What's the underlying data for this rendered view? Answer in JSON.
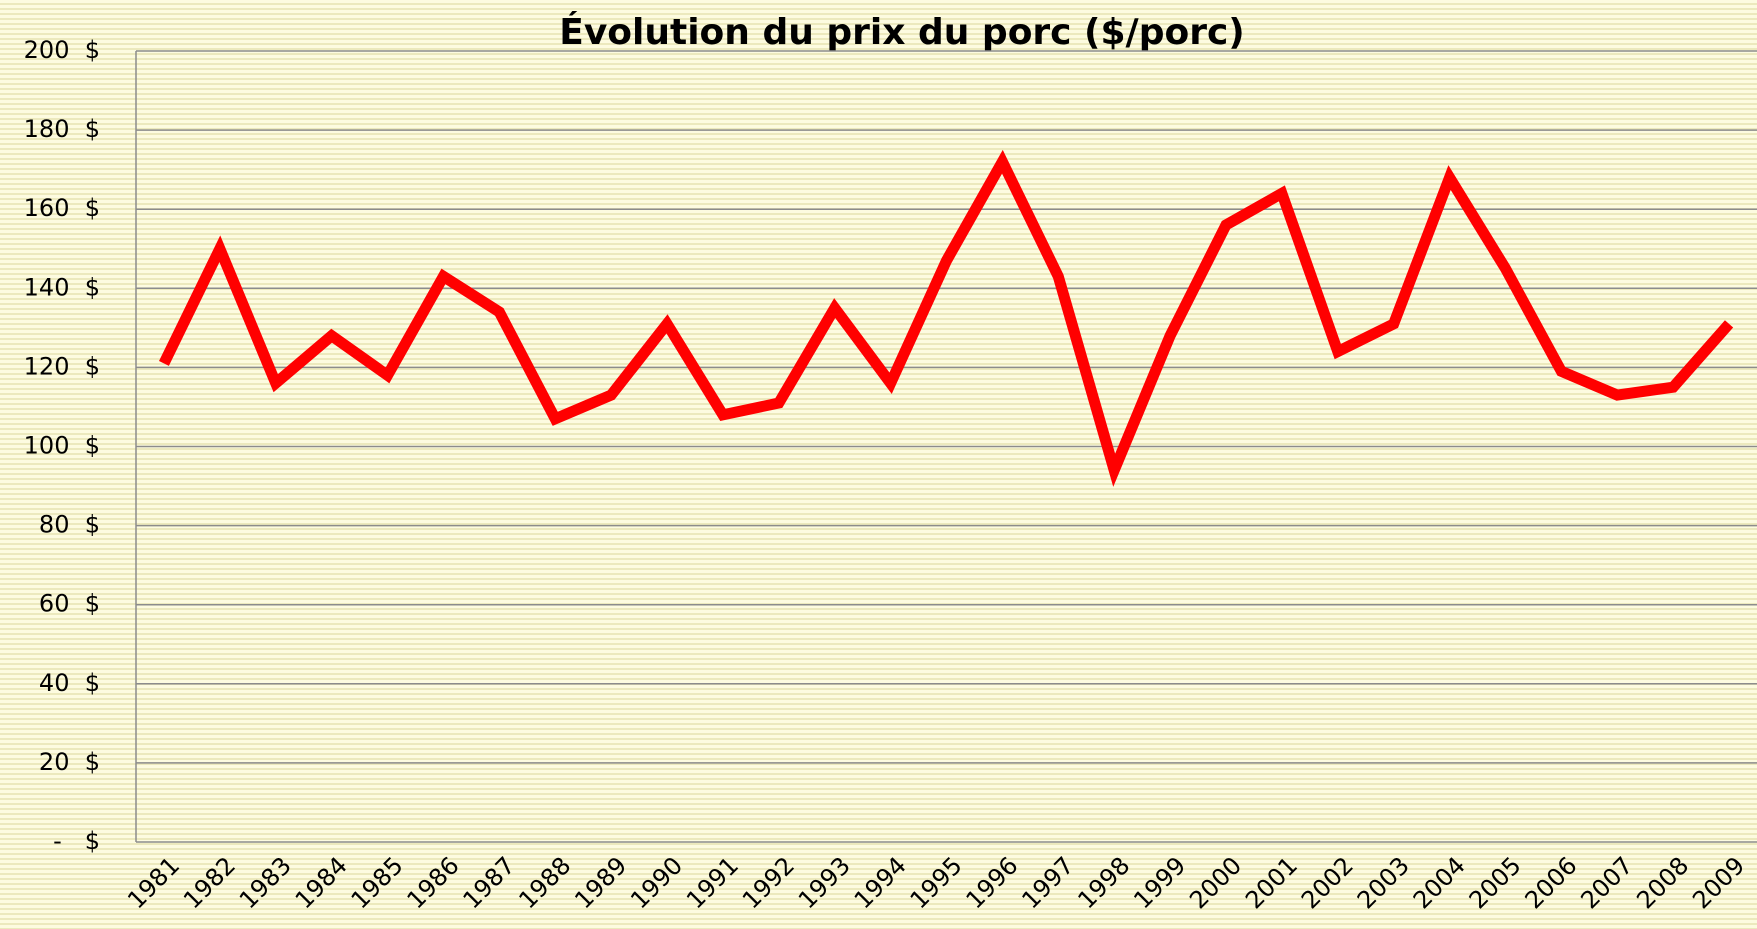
{
  "chart_data": {
    "type": "line",
    "title": "Évolution du prix du porc ($/porc)",
    "categories": [
      "1981",
      "1982",
      "1983",
      "1984",
      "1985",
      "1986",
      "1987",
      "1988",
      "1989",
      "1990",
      "1991",
      "1992",
      "1993",
      "1994",
      "1995",
      "1996",
      "1997",
      "1998",
      "1999",
      "2000",
      "2001",
      "2002",
      "2003",
      "2004",
      "2005",
      "2006",
      "2007",
      "2008",
      "2009"
    ],
    "series": [
      {
        "color": "#ff0000",
        "values": [
          121,
          150,
          116,
          128,
          118,
          143,
          134,
          107,
          113,
          131,
          108,
          111,
          135,
          116,
          147,
          172,
          143,
          94,
          128,
          156,
          164,
          124,
          131,
          168,
          145,
          119,
          113,
          115,
          131
        ]
      }
    ],
    "ylim": [
      0,
      200
    ],
    "yticks": [
      {
        "value": 0,
        "label": "-   $"
      },
      {
        "value": 20,
        "label": "20  $"
      },
      {
        "value": 40,
        "label": "40  $"
      },
      {
        "value": 60,
        "label": "60  $"
      },
      {
        "value": 80,
        "label": "80  $"
      },
      {
        "value": 100,
        "label": "100  $"
      },
      {
        "value": 120,
        "label": "120  $"
      },
      {
        "value": 140,
        "label": "140  $"
      },
      {
        "value": 160,
        "label": "160  $"
      },
      {
        "value": 180,
        "label": "180  $"
      },
      {
        "value": 200,
        "label": "200  $"
      }
    ],
    "grid": true
  }
}
